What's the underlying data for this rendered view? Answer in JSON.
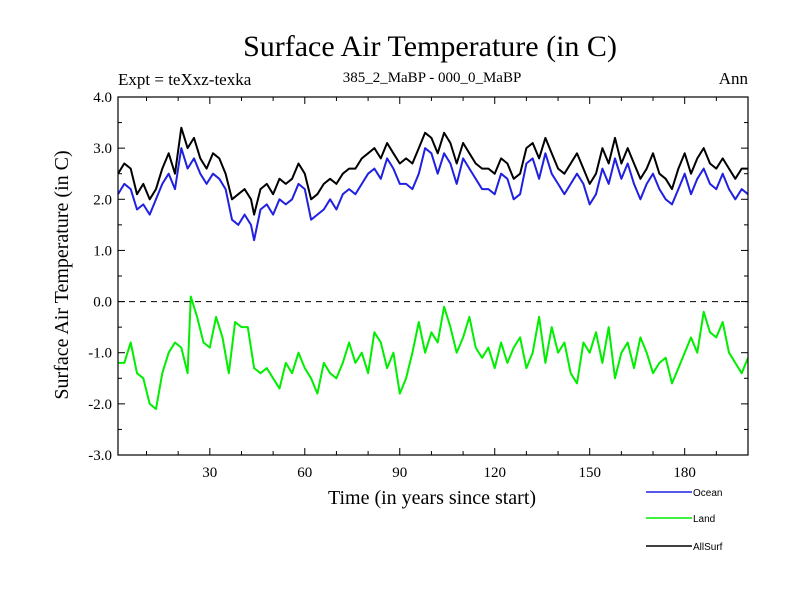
{
  "chart_data": {
    "type": "line",
    "title": "Surface Air Temperature (in C)",
    "subtitle_left": "Expt = teXxz-texka",
    "subtitle_center": "385_2_MaBP - 000_0_MaBP",
    "subtitle_right": "Ann",
    "xlabel": "Time (in years since start)",
    "ylabel": "Surface Air Temperature (in C)",
    "xlim": [
      1,
      200
    ],
    "ylim": [
      -3.0,
      4.0
    ],
    "x_ticks": [
      30,
      60,
      90,
      120,
      150,
      180
    ],
    "x_tick_labels": [
      "30",
      "60",
      "90",
      "120",
      "150",
      "180"
    ],
    "y_ticks": [
      -3.0,
      -2.0,
      -1.0,
      0.0,
      1.0,
      2.0,
      3.0,
      4.0
    ],
    "y_tick_labels": [
      "-3.0",
      "-2.0",
      "-1.0",
      "0.0",
      "1.0",
      "2.0",
      "3.0",
      "4.0"
    ],
    "reference_line": 0.0,
    "legend_position": "bottom-right",
    "series": [
      {
        "name": "Ocean",
        "color": "#2020e0",
        "points": [
          [
            1,
            2.1
          ],
          [
            3,
            2.3
          ],
          [
            5,
            2.2
          ],
          [
            7,
            1.8
          ],
          [
            9,
            1.9
          ],
          [
            11,
            1.7
          ],
          [
            13,
            2.0
          ],
          [
            15,
            2.3
          ],
          [
            17,
            2.5
          ],
          [
            19,
            2.2
          ],
          [
            21,
            3.0
          ],
          [
            23,
            2.6
          ],
          [
            25,
            2.8
          ],
          [
            27,
            2.5
          ],
          [
            29,
            2.3
          ],
          [
            31,
            2.5
          ],
          [
            33,
            2.4
          ],
          [
            35,
            2.2
          ],
          [
            37,
            1.6
          ],
          [
            39,
            1.5
          ],
          [
            41,
            1.7
          ],
          [
            43,
            1.5
          ],
          [
            44,
            1.2
          ],
          [
            46,
            1.8
          ],
          [
            48,
            1.9
          ],
          [
            50,
            1.7
          ],
          [
            52,
            2.0
          ],
          [
            54,
            1.9
          ],
          [
            56,
            2.0
          ],
          [
            58,
            2.3
          ],
          [
            60,
            2.2
          ],
          [
            62,
            1.6
          ],
          [
            64,
            1.7
          ],
          [
            66,
            1.8
          ],
          [
            68,
            2.0
          ],
          [
            70,
            1.8
          ],
          [
            72,
            2.1
          ],
          [
            74,
            2.2
          ],
          [
            76,
            2.1
          ],
          [
            78,
            2.3
          ],
          [
            80,
            2.5
          ],
          [
            82,
            2.6
          ],
          [
            84,
            2.4
          ],
          [
            86,
            2.8
          ],
          [
            88,
            2.6
          ],
          [
            90,
            2.3
          ],
          [
            92,
            2.3
          ],
          [
            94,
            2.2
          ],
          [
            96,
            2.5
          ],
          [
            98,
            3.0
          ],
          [
            100,
            2.9
          ],
          [
            102,
            2.5
          ],
          [
            104,
            2.9
          ],
          [
            106,
            2.7
          ],
          [
            108,
            2.3
          ],
          [
            110,
            2.8
          ],
          [
            112,
            2.6
          ],
          [
            114,
            2.4
          ],
          [
            116,
            2.2
          ],
          [
            118,
            2.2
          ],
          [
            120,
            2.1
          ],
          [
            122,
            2.5
          ],
          [
            124,
            2.4
          ],
          [
            126,
            2.0
          ],
          [
            128,
            2.1
          ],
          [
            130,
            2.7
          ],
          [
            132,
            2.8
          ],
          [
            134,
            2.4
          ],
          [
            136,
            2.9
          ],
          [
            138,
            2.5
          ],
          [
            140,
            2.3
          ],
          [
            142,
            2.1
          ],
          [
            144,
            2.3
          ],
          [
            146,
            2.5
          ],
          [
            148,
            2.3
          ],
          [
            150,
            1.9
          ],
          [
            152,
            2.1
          ],
          [
            154,
            2.6
          ],
          [
            156,
            2.3
          ],
          [
            158,
            2.8
          ],
          [
            160,
            2.4
          ],
          [
            162,
            2.7
          ],
          [
            164,
            2.3
          ],
          [
            166,
            2.0
          ],
          [
            168,
            2.3
          ],
          [
            170,
            2.5
          ],
          [
            172,
            2.2
          ],
          [
            174,
            2.0
          ],
          [
            176,
            1.9
          ],
          [
            178,
            2.2
          ],
          [
            180,
            2.5
          ],
          [
            182,
            2.1
          ],
          [
            184,
            2.4
          ],
          [
            186,
            2.6
          ],
          [
            188,
            2.3
          ],
          [
            190,
            2.2
          ],
          [
            192,
            2.5
          ],
          [
            194,
            2.2
          ],
          [
            196,
            2.0
          ],
          [
            198,
            2.2
          ],
          [
            200,
            2.1
          ]
        ]
      },
      {
        "name": "Land",
        "color": "#00ee00",
        "points": [
          [
            1,
            -1.2
          ],
          [
            3,
            -1.2
          ],
          [
            5,
            -0.8
          ],
          [
            7,
            -1.4
          ],
          [
            9,
            -1.5
          ],
          [
            11,
            -2.0
          ],
          [
            13,
            -2.1
          ],
          [
            15,
            -1.4
          ],
          [
            17,
            -1.0
          ],
          [
            19,
            -0.8
          ],
          [
            21,
            -0.9
          ],
          [
            23,
            -1.4
          ],
          [
            24,
            0.1
          ],
          [
            26,
            -0.3
          ],
          [
            28,
            -0.8
          ],
          [
            30,
            -0.9
          ],
          [
            32,
            -0.3
          ],
          [
            34,
            -0.7
          ],
          [
            36,
            -1.4
          ],
          [
            38,
            -0.4
          ],
          [
            40,
            -0.5
          ],
          [
            42,
            -0.5
          ],
          [
            44,
            -1.3
          ],
          [
            46,
            -1.4
          ],
          [
            48,
            -1.3
          ],
          [
            50,
            -1.5
          ],
          [
            52,
            -1.7
          ],
          [
            54,
            -1.2
          ],
          [
            56,
            -1.4
          ],
          [
            58,
            -1.0
          ],
          [
            60,
            -1.3
          ],
          [
            62,
            -1.5
          ],
          [
            64,
            -1.8
          ],
          [
            66,
            -1.2
          ],
          [
            68,
            -1.4
          ],
          [
            70,
            -1.5
          ],
          [
            72,
            -1.2
          ],
          [
            74,
            -0.8
          ],
          [
            76,
            -1.2
          ],
          [
            78,
            -1.0
          ],
          [
            80,
            -1.4
          ],
          [
            82,
            -0.6
          ],
          [
            84,
            -0.8
          ],
          [
            86,
            -1.3
          ],
          [
            88,
            -1.0
          ],
          [
            90,
            -1.8
          ],
          [
            92,
            -1.5
          ],
          [
            94,
            -1.0
          ],
          [
            96,
            -0.4
          ],
          [
            98,
            -1.0
          ],
          [
            100,
            -0.6
          ],
          [
            102,
            -0.8
          ],
          [
            104,
            -0.1
          ],
          [
            106,
            -0.5
          ],
          [
            108,
            -1.0
          ],
          [
            110,
            -0.7
          ],
          [
            112,
            -0.3
          ],
          [
            114,
            -0.9
          ],
          [
            116,
            -1.1
          ],
          [
            118,
            -0.9
          ],
          [
            120,
            -1.3
          ],
          [
            122,
            -0.8
          ],
          [
            124,
            -1.2
          ],
          [
            126,
            -0.9
          ],
          [
            128,
            -0.7
          ],
          [
            130,
            -1.3
          ],
          [
            132,
            -1.0
          ],
          [
            134,
            -0.3
          ],
          [
            136,
            -1.2
          ],
          [
            138,
            -0.5
          ],
          [
            140,
            -1.0
          ],
          [
            142,
            -0.8
          ],
          [
            144,
            -1.4
          ],
          [
            146,
            -1.6
          ],
          [
            148,
            -0.8
          ],
          [
            150,
            -1.0
          ],
          [
            152,
            -0.6
          ],
          [
            154,
            -1.2
          ],
          [
            156,
            -0.5
          ],
          [
            158,
            -1.5
          ],
          [
            160,
            -1.0
          ],
          [
            162,
            -0.8
          ],
          [
            164,
            -1.3
          ],
          [
            166,
            -0.7
          ],
          [
            168,
            -1.0
          ],
          [
            170,
            -1.4
          ],
          [
            172,
            -1.2
          ],
          [
            174,
            -1.1
          ],
          [
            176,
            -1.6
          ],
          [
            178,
            -1.3
          ],
          [
            180,
            -1.0
          ],
          [
            182,
            -0.7
          ],
          [
            184,
            -1.0
          ],
          [
            186,
            -0.2
          ],
          [
            188,
            -0.6
          ],
          [
            190,
            -0.7
          ],
          [
            192,
            -0.4
          ],
          [
            194,
            -1.0
          ],
          [
            196,
            -1.2
          ],
          [
            198,
            -1.4
          ],
          [
            200,
            -1.1
          ]
        ]
      },
      {
        "name": "AllSurf",
        "color": "#000000",
        "points": [
          [
            1,
            2.5
          ],
          [
            3,
            2.7
          ],
          [
            5,
            2.6
          ],
          [
            7,
            2.1
          ],
          [
            9,
            2.3
          ],
          [
            11,
            2.0
          ],
          [
            13,
            2.2
          ],
          [
            15,
            2.6
          ],
          [
            17,
            2.9
          ],
          [
            19,
            2.5
          ],
          [
            21,
            3.4
          ],
          [
            23,
            3.0
          ],
          [
            25,
            3.2
          ],
          [
            27,
            2.8
          ],
          [
            29,
            2.6
          ],
          [
            31,
            2.9
          ],
          [
            33,
            2.8
          ],
          [
            35,
            2.5
          ],
          [
            37,
            2.0
          ],
          [
            39,
            2.1
          ],
          [
            41,
            2.2
          ],
          [
            43,
            2.0
          ],
          [
            44,
            1.7
          ],
          [
            46,
            2.2
          ],
          [
            48,
            2.3
          ],
          [
            50,
            2.1
          ],
          [
            52,
            2.4
          ],
          [
            54,
            2.3
          ],
          [
            56,
            2.4
          ],
          [
            58,
            2.7
          ],
          [
            60,
            2.5
          ],
          [
            62,
            2.0
          ],
          [
            64,
            2.1
          ],
          [
            66,
            2.3
          ],
          [
            68,
            2.4
          ],
          [
            70,
            2.3
          ],
          [
            72,
            2.5
          ],
          [
            74,
            2.6
          ],
          [
            76,
            2.6
          ],
          [
            78,
            2.8
          ],
          [
            80,
            2.9
          ],
          [
            82,
            3.0
          ],
          [
            84,
            2.8
          ],
          [
            86,
            3.1
          ],
          [
            88,
            2.9
          ],
          [
            90,
            2.7
          ],
          [
            92,
            2.8
          ],
          [
            94,
            2.7
          ],
          [
            96,
            3.0
          ],
          [
            98,
            3.3
          ],
          [
            100,
            3.2
          ],
          [
            102,
            2.9
          ],
          [
            104,
            3.3
          ],
          [
            106,
            3.1
          ],
          [
            108,
            2.7
          ],
          [
            110,
            3.1
          ],
          [
            112,
            2.9
          ],
          [
            114,
            2.7
          ],
          [
            116,
            2.6
          ],
          [
            118,
            2.6
          ],
          [
            120,
            2.5
          ],
          [
            122,
            2.8
          ],
          [
            124,
            2.7
          ],
          [
            126,
            2.4
          ],
          [
            128,
            2.5
          ],
          [
            130,
            3.0
          ],
          [
            132,
            3.1
          ],
          [
            134,
            2.8
          ],
          [
            136,
            3.2
          ],
          [
            138,
            2.9
          ],
          [
            140,
            2.6
          ],
          [
            142,
            2.5
          ],
          [
            144,
            2.7
          ],
          [
            146,
            2.9
          ],
          [
            148,
            2.6
          ],
          [
            150,
            2.3
          ],
          [
            152,
            2.5
          ],
          [
            154,
            3.0
          ],
          [
            156,
            2.7
          ],
          [
            158,
            3.2
          ],
          [
            160,
            2.7
          ],
          [
            162,
            3.0
          ],
          [
            164,
            2.7
          ],
          [
            166,
            2.4
          ],
          [
            168,
            2.6
          ],
          [
            170,
            2.9
          ],
          [
            172,
            2.5
          ],
          [
            174,
            2.4
          ],
          [
            176,
            2.2
          ],
          [
            178,
            2.6
          ],
          [
            180,
            2.9
          ],
          [
            182,
            2.5
          ],
          [
            184,
            2.8
          ],
          [
            186,
            3.0
          ],
          [
            188,
            2.7
          ],
          [
            190,
            2.6
          ],
          [
            192,
            2.8
          ],
          [
            194,
            2.6
          ],
          [
            196,
            2.4
          ],
          [
            198,
            2.6
          ],
          [
            200,
            2.6
          ]
        ]
      }
    ]
  }
}
